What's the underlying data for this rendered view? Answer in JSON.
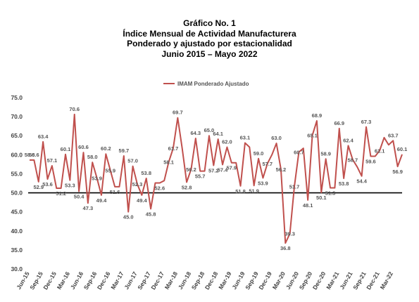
{
  "header": {
    "line1": "Gráfico No. 1",
    "line2": "Índice Mensual de Actividad Manufacturera",
    "line3": "Ponderado y ajustado por estacionalidad",
    "line4": "Junio 2015 – Mayo 2022"
  },
  "colors": {
    "series": "#c0504d",
    "axis": "#000000",
    "text": "#444444"
  },
  "chart_data": {
    "type": "line",
    "title": "",
    "xlabel": "",
    "ylabel": "",
    "ylim": [
      30,
      75
    ],
    "yticks": [
      "30.0",
      "35.0",
      "40.0",
      "45.0",
      "50.0",
      "55.0",
      "60.0",
      "65.0",
      "70.0",
      "75.0"
    ],
    "reference_line": 50,
    "grid": false,
    "legend_position": "top-center",
    "x": [
      "Jun-15",
      "Jul-15",
      "Aug-15",
      "Sep-15",
      "Oct-15",
      "Nov-15",
      "Dec-15",
      "Jan-16",
      "Feb-16",
      "Mar-16",
      "Apr-16",
      "May-16",
      "Jun-16",
      "Jul-16",
      "Aug-16",
      "Sep-16",
      "Oct-16",
      "Nov-16",
      "Dec-16",
      "Jan-17",
      "Feb-17",
      "Mar-17",
      "Apr-17",
      "May-17",
      "Jun-17",
      "Jul-17",
      "Aug-17",
      "Sep-17",
      "Oct-17",
      "Nov-17",
      "Dec-17",
      "Jan-18",
      "Feb-18",
      "Mar-18",
      "Apr-18",
      "May-18",
      "Jun-18",
      "Jul-18",
      "Aug-18",
      "Sep-18",
      "Oct-18",
      "Nov-18",
      "Dec-18",
      "Jan-19",
      "Feb-19",
      "Mar-19",
      "Apr-19",
      "May-19",
      "Jun-19",
      "Jul-19",
      "Aug-19",
      "Sep-19",
      "Oct-19",
      "Nov-19",
      "Dec-19",
      "Jan-20",
      "Feb-20",
      "Mar-20",
      "Apr-20",
      "May-20",
      "Jun-20",
      "Jul-20",
      "Aug-20",
      "Sep-20",
      "Oct-20",
      "Nov-20",
      "Dec-20",
      "Jan-21",
      "Feb-21",
      "Mar-21",
      "Apr-21",
      "May-21",
      "Jun-21",
      "Jul-21",
      "Aug-21",
      "Sep-21",
      "Oct-21",
      "Nov-21",
      "Dec-21",
      "Jan-22",
      "Feb-22",
      "Mar-22",
      "Apr-22",
      "May-22"
    ],
    "xtick_labels": [
      "Jun-15",
      "Sep-15",
      "Dec-15",
      "Mar-16",
      "Jun-16",
      "Sep-16",
      "Dec-16",
      "Mar-17",
      "Jun-17",
      "Sep-17",
      "Dec-17",
      "Mar-18",
      "Jun-18",
      "Sep-18",
      "Dec-18",
      "Mar-19",
      "Jun-19",
      "Sep-19",
      "Dec-19",
      "Mar-20",
      "Jun-20",
      "Sep-20",
      "Dec-20",
      "Mar-21",
      "Jun-21",
      "Sep-21",
      "Dec-21",
      "Mar-22"
    ],
    "series": [
      {
        "name": "IMAM Ponderado Ajustado",
        "values": [
          58.6,
          58.6,
          52.9,
          63.4,
          53.6,
          57.1,
          51.2,
          51.2,
          60.1,
          53.3,
          70.6,
          50.4,
          60.6,
          47.3,
          58.0,
          53.9,
          49.4,
          60.2,
          55.9,
          51.6,
          51.6,
          59.7,
          45.0,
          57.0,
          52.3,
          49.4,
          53.8,
          45.8,
          52.6,
          52.6,
          53.2,
          58.1,
          61.7,
          69.7,
          61.7,
          52.8,
          56.2,
          64.3,
          55.7,
          55.7,
          65.0,
          57.2,
          64.1,
          57.4,
          62.0,
          57.9,
          57.9,
          51.8,
          63.1,
          62.0,
          51.9,
          59.0,
          53.9,
          57.7,
          60.0,
          63.0,
          56.2,
          36.8,
          39.3,
          51.7,
          60.7,
          61.7,
          48.1,
          65.1,
          68.9,
          50.1,
          58.9,
          51.3,
          51.3,
          66.9,
          53.8,
          62.4,
          58.7,
          56.8,
          54.4,
          67.3,
          59.6,
          59.6,
          61.1,
          64.5,
          62.6,
          63.7,
          56.9,
          60.1
        ]
      }
    ],
    "data_labels": [
      {
        "i": 0,
        "text": "58.6"
      },
      {
        "i": 1,
        "text": "58.6"
      },
      {
        "i": 2,
        "text": "52.9"
      },
      {
        "i": 3,
        "text": "63.4"
      },
      {
        "i": 4,
        "text": "53.6"
      },
      {
        "i": 5,
        "text": "57.1"
      },
      {
        "i": 7,
        "text": "51.2"
      },
      {
        "i": 8,
        "text": "60.1"
      },
      {
        "i": 9,
        "text": "53.3"
      },
      {
        "i": 10,
        "text": "70.6"
      },
      {
        "i": 11,
        "text": "50.4"
      },
      {
        "i": 12,
        "text": "60.6"
      },
      {
        "i": 13,
        "text": "47.3"
      },
      {
        "i": 14,
        "text": "58.0"
      },
      {
        "i": 15,
        "text": "53.9"
      },
      {
        "i": 16,
        "text": "49.4"
      },
      {
        "i": 17,
        "text": "60.2"
      },
      {
        "i": 18,
        "text": "55.9"
      },
      {
        "i": 19,
        "text": "51.6"
      },
      {
        "i": 21,
        "text": "59.7"
      },
      {
        "i": 22,
        "text": "45.0"
      },
      {
        "i": 23,
        "text": "57.0"
      },
      {
        "i": 24,
        "text": "52.3"
      },
      {
        "i": 25,
        "text": "49.4"
      },
      {
        "i": 26,
        "text": "53.8"
      },
      {
        "i": 27,
        "text": "45.8"
      },
      {
        "i": 29,
        "text": "52.6"
      },
      {
        "i": 31,
        "text": "58.1"
      },
      {
        "i": 32,
        "text": "61.7"
      },
      {
        "i": 33,
        "text": "69.7"
      },
      {
        "i": 35,
        "text": "52.8"
      },
      {
        "i": 36,
        "text": "56.2"
      },
      {
        "i": 37,
        "text": "64.3"
      },
      {
        "i": 38,
        "text": "55.7"
      },
      {
        "i": 40,
        "text": "65.0"
      },
      {
        "i": 41,
        "text": "57.2"
      },
      {
        "i": 42,
        "text": "64.1"
      },
      {
        "i": 43,
        "text": "57.4"
      },
      {
        "i": 44,
        "text": "62.0"
      },
      {
        "i": 45,
        "text": "57.9"
      },
      {
        "i": 47,
        "text": "51.8"
      },
      {
        "i": 48,
        "text": "63.1"
      },
      {
        "i": 50,
        "text": "51.9"
      },
      {
        "i": 51,
        "text": "59.0"
      },
      {
        "i": 52,
        "text": "53.9"
      },
      {
        "i": 53,
        "text": "57.7"
      },
      {
        "i": 55,
        "text": "63.0"
      },
      {
        "i": 56,
        "text": "56.2"
      },
      {
        "i": 57,
        "text": "36.8"
      },
      {
        "i": 58,
        "text": "39.3"
      },
      {
        "i": 59,
        "text": "51.7"
      },
      {
        "i": 60,
        "text": "60.7"
      },
      {
        "i": 62,
        "text": "48.1"
      },
      {
        "i": 63,
        "text": "65.1"
      },
      {
        "i": 64,
        "text": "68.9"
      },
      {
        "i": 65,
        "text": "50.1"
      },
      {
        "i": 66,
        "text": "58.9"
      },
      {
        "i": 67,
        "text": "51.3"
      },
      {
        "i": 69,
        "text": "66.9"
      },
      {
        "i": 70,
        "text": "53.8"
      },
      {
        "i": 71,
        "text": "62.4"
      },
      {
        "i": 72,
        "text": "58.7"
      },
      {
        "i": 74,
        "text": "54.4"
      },
      {
        "i": 75,
        "text": "67.3"
      },
      {
        "i": 76,
        "text": "59.6"
      },
      {
        "i": 78,
        "text": "61.1"
      },
      {
        "i": 81,
        "text": "63.7"
      },
      {
        "i": 82,
        "text": "56.9"
      },
      {
        "i": 83,
        "text": "60.1"
      }
    ]
  }
}
